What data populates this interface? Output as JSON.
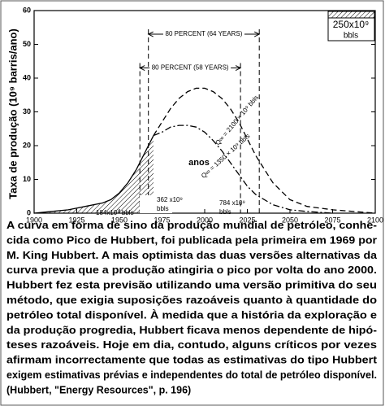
{
  "chart_data": {
    "type": "line",
    "y_label": "Taxa de produção (10⁹ barris/ano)",
    "x_label": "anos",
    "xlim": [
      1900,
      2100
    ],
    "xticks": [
      1900,
      1925,
      1950,
      1975,
      2000,
      2025,
      2050,
      2075,
      2100
    ],
    "ylim": [
      0,
      60
    ],
    "yticks": [
      0,
      10,
      20,
      30,
      40,
      50,
      60
    ],
    "series": [
      {
        "color": "#000000",
        "style": "solid",
        "hatched": true,
        "x": [
          1900,
          1910,
          1920,
          1930,
          1940,
          1945,
          1950,
          1955,
          1960,
          1965,
          1970
        ],
        "values": [
          0,
          0.5,
          1,
          2,
          3,
          4,
          6,
          9,
          13,
          18,
          23
        ]
      },
      {
        "name": "Q∞ = 2100 × 10⁹ bbls",
        "color": "#000000",
        "style": "dashed",
        "x": [
          1970,
          1975,
          1980,
          1985,
          1990,
          1995,
          2000,
          2005,
          2010,
          2015,
          2020,
          2025,
          2030,
          2040,
          2050,
          2060,
          2075,
          2100
        ],
        "values": [
          23,
          27,
          31,
          34,
          36,
          37,
          37,
          36,
          34,
          31,
          27,
          22,
          17,
          9,
          4,
          2,
          1,
          0
        ]
      },
      {
        "name": "Q∞ = 1350 × 10⁹ bbls",
        "color": "#000000",
        "style": "dashdot",
        "x": [
          1970,
          1975,
          1980,
          1985,
          1990,
          1995,
          2000,
          2005,
          2010,
          2015,
          2020,
          2025,
          2030,
          2040,
          2050,
          2060,
          2075
        ],
        "values": [
          23,
          24,
          25.5,
          26,
          26,
          25.5,
          24,
          21.5,
          18.5,
          15,
          11.5,
          8,
          5.5,
          2.5,
          1,
          0.5,
          0
        ]
      }
    ],
    "spans": [
      {
        "label": "80 PERCENT (64 YEARS)",
        "x": [
          1967,
          2032
        ],
        "y": 53
      },
      {
        "label": "80 PERCENT (58 YEARS)",
        "x": [
          1962,
          2021
        ],
        "y": 43
      }
    ],
    "scale_box": [
      "250x10⁹",
      "bbls"
    ],
    "annotations": [
      [
        "184x10⁹ bbls"
      ],
      [
        "362 x10⁹",
        "bbls"
      ],
      [
        "784 x10⁹",
        "bbls"
      ]
    ]
  },
  "caption": [
    "A curva em forma de sino da produção mundial de petróleo, conhe-",
    "cida como Pico de Hubbert, foi publicada pela primeira em 1969 por",
    "M. King Hubbert.  A mais optimista das duas versões alternativas da",
    "curva previa que a produção atingiria o pico por volta do ano 2000.",
    "Hubbert fez esta previsão utilizando uma versão primitiva do seu",
    "método, que exigia suposições razoáveis quanto à quantidade do",
    "petróleo total disponível.  À medida que a história da exploração e",
    "da produção progredia, Hubbert ficava menos dependente de hipó-",
    "teses razoáveis.  Hoje em dia, contudo, alguns críticos por vezes",
    "afirmam incorrectamente que todas as estimativas do tipo Hubbert",
    "exigem  estimativas prévias e independentes do total de petróleo disponível.",
    "(Hubbert, \"Energy Resources\", p. 196)"
  ]
}
